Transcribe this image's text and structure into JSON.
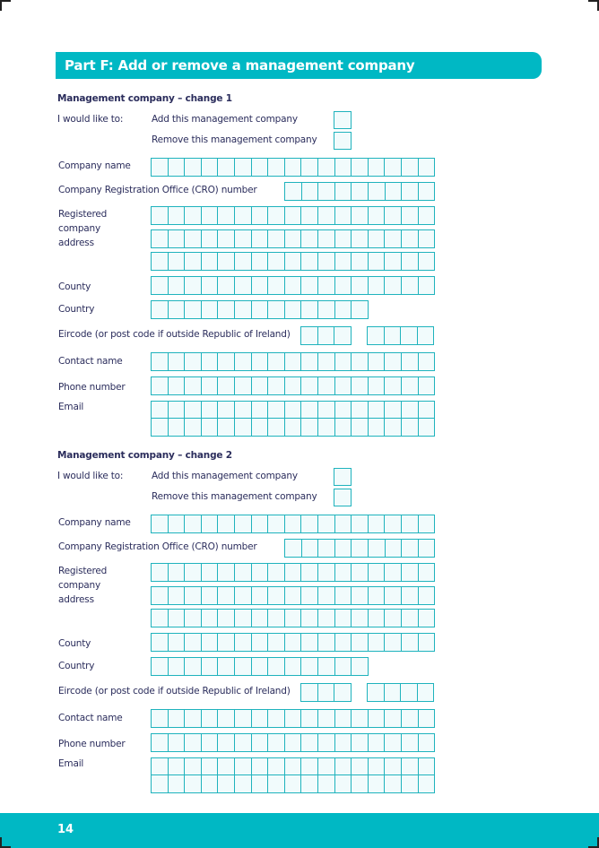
{
  "header": {
    "title": "Part F: Add or remove a management company"
  },
  "sections": [
    {
      "heading": "Management company – change 1"
    },
    {
      "heading": "Management company – change 2"
    }
  ],
  "labels": {
    "would_like": "I would like to:",
    "add": "Add this management company",
    "remove": "Remove this management company",
    "company_name": "Company name",
    "cro": "Company Registration Office (CRO) number",
    "address": "Registered\ncompany\naddress",
    "county": "County",
    "country": "Country",
    "eircode": "Eircode (or post code if outside Republic of Ireland)",
    "contact": "Contact name",
    "phone": "Phone number",
    "email": "Email"
  },
  "colors": {
    "accent": "#00b8c4",
    "text": "#2b2d5c"
  },
  "footer": {
    "page_number": "14"
  }
}
